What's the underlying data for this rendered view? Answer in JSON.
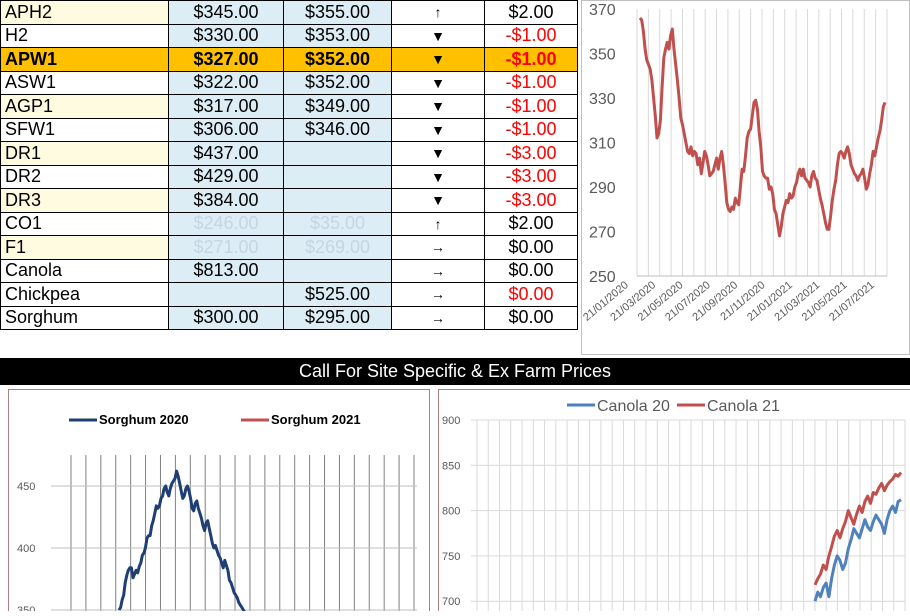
{
  "table": {
    "rows": [
      {
        "name": "APH2",
        "c1": "$345.00",
        "c2": "$355.00",
        "arrow": "↑",
        "change": "$2.00",
        "neg": false
      },
      {
        "name": "H2",
        "c1": "$330.00",
        "c2": "$353.00",
        "arrow": "▼",
        "change": "-$1.00",
        "neg": true
      },
      {
        "name": "APW1",
        "c1": "$327.00",
        "c2": "$352.00",
        "arrow": "▼",
        "change": "-$1.00",
        "neg": true,
        "highlight": true
      },
      {
        "name": "ASW1",
        "c1": "$322.00",
        "c2": "$352.00",
        "arrow": "▼",
        "change": "-$1.00",
        "neg": true
      },
      {
        "name": "AGP1",
        "c1": "$317.00",
        "c2": "$349.00",
        "arrow": "▼",
        "change": "-$1.00",
        "neg": true
      },
      {
        "name": "SFW1",
        "c1": "$306.00",
        "c2": "$346.00",
        "arrow": "▼",
        "change": "-$1.00",
        "neg": true
      },
      {
        "name": "DR1",
        "c1": "$437.00",
        "c2": "",
        "arrow": "▼",
        "change": "-$3.00",
        "neg": true
      },
      {
        "name": "DR2",
        "c1": "$429.00",
        "c2": "",
        "arrow": "▼",
        "change": "-$3.00",
        "neg": true
      },
      {
        "name": "DR3",
        "c1": "$384.00",
        "c2": "",
        "arrow": "▼",
        "change": "-$3.00",
        "neg": true
      },
      {
        "name": "CO1",
        "c1": "$246.00",
        "c2": "$35.00",
        "arrow": "↑",
        "change": "$2.00",
        "neg": false,
        "faded": true
      },
      {
        "name": "F1",
        "c1": "$271.00",
        "c2": "$269.00",
        "arrow": "→",
        "change": "$0.00",
        "neg": false,
        "faded": true
      },
      {
        "name": "Canola",
        "c1": "$813.00",
        "c2": "",
        "arrow": "→",
        "change": "$0.00",
        "neg": false
      },
      {
        "name": "Chickpea",
        "c1": "",
        "c2": "$525.00",
        "arrow": "→",
        "change": "$0.00",
        "neg": true
      },
      {
        "name": "Sorghum",
        "c1": "$300.00",
        "c2": "$295.00",
        "arrow": "→",
        "change": "$0.00",
        "neg": false
      }
    ]
  },
  "banner": "Call For Site Specific & Ex Farm Prices",
  "chart_data": [
    {
      "type": "line",
      "title": "",
      "xlabel": "",
      "ylabel": "",
      "ylim": [
        250,
        370
      ],
      "yticks": [
        "250",
        "270",
        "290",
        "310",
        "330",
        "350",
        "370"
      ],
      "xticks": [
        "21/01/2020",
        "21/03/2020",
        "21/05/2020",
        "21/07/2020",
        "21/09/2020",
        "21/11/2020",
        "21/01/2021",
        "21/03/2021",
        "21/05/2021",
        "21/07/2021"
      ],
      "grid": true,
      "color": "#c0504d",
      "series": [
        {
          "values": [
            366,
            365,
            360,
            352,
            347,
            345,
            343,
            338,
            330,
            322,
            312,
            314,
            320,
            335,
            348,
            352,
            355,
            352,
            358,
            361,
            352,
            345,
            338,
            330,
            321,
            318,
            314,
            310,
            306,
            305,
            308,
            304,
            306,
            305,
            300,
            303,
            296,
            301,
            306,
            304,
            300,
            295,
            296,
            297,
            300,
            303,
            298,
            303,
            306,
            300,
            292,
            283,
            280,
            279,
            281,
            280,
            285,
            283,
            282,
            290,
            298,
            297,
            304,
            312,
            315,
            316,
            322,
            328,
            329,
            325,
            315,
            308,
            297,
            295,
            294,
            294,
            289,
            290,
            287,
            280,
            278,
            273,
            268,
            272,
            278,
            281,
            284,
            283,
            287,
            285,
            286,
            290,
            292,
            296,
            298,
            295,
            298,
            294,
            293,
            292,
            290,
            295,
            297,
            294,
            293,
            289,
            285,
            282,
            278,
            274,
            271,
            271,
            277,
            284,
            289,
            293,
            300,
            305,
            306,
            305,
            303,
            306,
            308,
            305,
            300,
            298,
            296,
            295,
            293,
            295,
            296,
            298,
            294,
            289,
            291,
            296,
            300,
            306,
            304,
            308,
            312,
            315,
            320,
            326,
            328
          ]
        }
      ]
    },
    {
      "type": "line",
      "title": "",
      "xlabel": "",
      "ylabel": "",
      "ylim": [
        350,
        480
      ],
      "yticks": [
        "350",
        "400",
        "450"
      ],
      "legend": "top",
      "series": [
        {
          "name": "Sorghum 2020",
          "color": "#1f3f74",
          "values": [
            350,
            352,
            358,
            362,
            372,
            378,
            382,
            384,
            384,
            376,
            379,
            382,
            380,
            385,
            388,
            394,
            396,
            400,
            408,
            410,
            410,
            418,
            422,
            428,
            434,
            432,
            434,
            440,
            442,
            448,
            450,
            445,
            442,
            448,
            452,
            454,
            456,
            462,
            458,
            452,
            446,
            440,
            442,
            448,
            450,
            446,
            440,
            432,
            430,
            436,
            438,
            432,
            428,
            424,
            418,
            414,
            420,
            422,
            416,
            410,
            404,
            400,
            402,
            398,
            394,
            392,
            388,
            384,
            390,
            386,
            382,
            374,
            372,
            368,
            364,
            362,
            360,
            356,
            354,
            352,
            350,
            348
          ]
        },
        {
          "name": "Sorghum 2021",
          "color": "#c0504d",
          "values": []
        }
      ]
    },
    {
      "type": "line",
      "title": "",
      "xlabel": "",
      "ylabel": "",
      "ylim": [
        700,
        900
      ],
      "yticks": [
        "700",
        "750",
        "800",
        "850",
        "900"
      ],
      "legend": "top",
      "series": [
        {
          "name": "Canola 20",
          "color": "#4f81bd",
          "values": [
            700,
            710,
            705,
            715,
            720,
            705,
            725,
            740,
            750,
            745,
            735,
            742,
            758,
            768,
            780,
            775,
            770,
            780,
            790,
            782,
            778,
            788,
            795,
            790,
            785,
            775,
            790,
            800,
            805,
            798,
            810,
            812
          ]
        },
        {
          "name": "Canola 21",
          "color": "#c0504d",
          "values": [
            718,
            725,
            730,
            740,
            735,
            750,
            760,
            772,
            778,
            770,
            780,
            788,
            800,
            792,
            785,
            796,
            805,
            798,
            810,
            816,
            808,
            820,
            818,
            825,
            830,
            822,
            828,
            832,
            835,
            840,
            838,
            842
          ]
        }
      ]
    }
  ]
}
